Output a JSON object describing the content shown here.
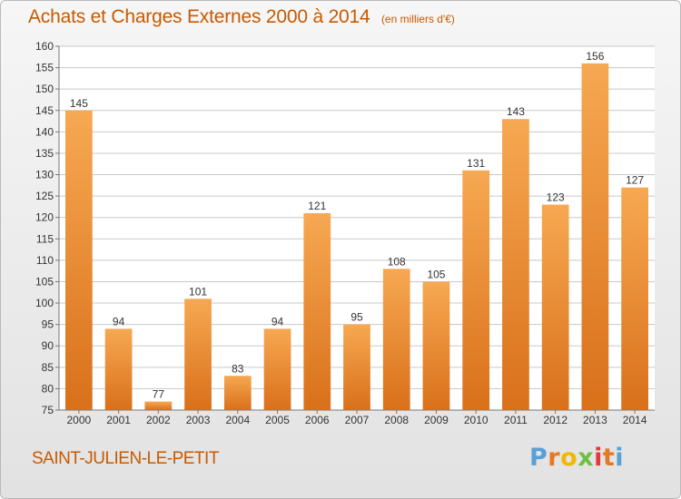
{
  "chart_data": {
    "type": "bar",
    "title": "Achats et Charges Externes 2000 à 2014",
    "subtitle": "(en milliers d'€)",
    "categories": [
      "2000",
      "2001",
      "2002",
      "2003",
      "2004",
      "2005",
      "2006",
      "2007",
      "2008",
      "2009",
      "2010",
      "2011",
      "2012",
      "2013",
      "2014"
    ],
    "values": [
      145,
      94,
      77,
      101,
      83,
      94,
      121,
      95,
      108,
      105,
      131,
      143,
      123,
      156,
      127
    ],
    "ylim": [
      75,
      160
    ],
    "yticks": [
      75,
      80,
      85,
      90,
      95,
      100,
      105,
      110,
      115,
      120,
      125,
      130,
      135,
      140,
      145,
      150,
      155,
      160
    ],
    "grid": true,
    "xlabel": "",
    "ylabel": "",
    "colors": {
      "bar_light": "#f7a852",
      "bar_dark": "#d9701a",
      "title": "#c75a00",
      "grid": "#c8c8c8"
    }
  },
  "footer": {
    "place": "SAINT-JULIEN-LE-PETIT",
    "logo_letters": [
      "P",
      "r",
      "o",
      "x",
      "i",
      "t",
      "i"
    ],
    "logo_colors": [
      "#5a9fd6",
      "#e87722",
      "#f2b705",
      "#6fbf44",
      "#e23a3a",
      "#e87722",
      "#5a9fd6"
    ]
  }
}
